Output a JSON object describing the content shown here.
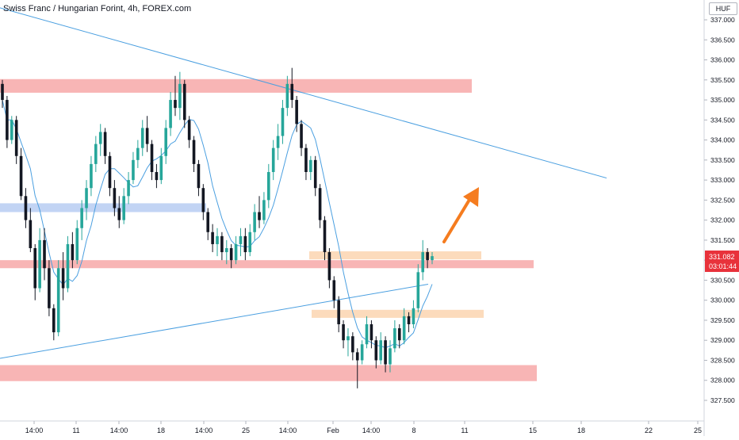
{
  "chart_data": {
    "type": "candlestick",
    "title": "Swiss Franc / Hungarian Forint, 4h, FOREX.com",
    "currency": "HUF",
    "ylim": [
      327.2,
      337.25
    ],
    "y_ticks": [
      "337.000",
      "336.500",
      "336.000",
      "335.500",
      "335.000",
      "334.500",
      "334.000",
      "333.500",
      "333.000",
      "332.500",
      "332.000",
      "331.500",
      "331.000",
      "330.500",
      "330.000",
      "329.500",
      "329.000",
      "328.500",
      "328.000",
      "327.500"
    ],
    "x_ticks": [
      "14:00",
      "11",
      "14:00",
      "18",
      "14:00",
      "25",
      "14:00",
      "Feb",
      "14:00",
      "8",
      "11",
      "15",
      "18",
      "22",
      "25"
    ],
    "last_price": "331.082",
    "countdown": "03:01:44",
    "colors": {
      "up": "#26a69a",
      "down": "#131722",
      "resistance_zone": "#f7a8a8",
      "support_zone_blue": "#b7cdf2",
      "orange_zone": "#fcd5b0",
      "trendline": "#4a9fe0",
      "moving_average": "#4a9fe0",
      "arrow": "#f57c1f",
      "price_label": "#e8323b"
    },
    "zones": [
      {
        "kind": "resistance",
        "from": 335.18,
        "to": 335.52
      },
      {
        "kind": "support-blue",
        "from": 332.2,
        "to": 332.42
      },
      {
        "kind": "resistance",
        "from": 330.8,
        "to": 331.0
      },
      {
        "kind": "orange",
        "from": 331.02,
        "to": 331.22
      },
      {
        "kind": "orange",
        "from": 329.56,
        "to": 329.76
      },
      {
        "kind": "resistance",
        "from": 327.98,
        "to": 328.38
      }
    ],
    "trendlines": [
      {
        "from": [
          0,
          337.3
        ],
        "to": [
          765,
          333.05
        ]
      },
      {
        "from": [
          0,
          328.55
        ],
        "to": [
          540,
          330.4
        ]
      }
    ],
    "candles": [
      [
        335.4,
        335.5,
        334.8,
        335.0
      ],
      [
        335.0,
        335.1,
        333.8,
        334.0
      ],
      [
        334.0,
        334.6,
        333.9,
        334.5
      ],
      [
        334.5,
        334.6,
        333.4,
        333.6
      ],
      [
        333.6,
        333.8,
        332.5,
        332.6
      ],
      [
        332.6,
        332.8,
        331.8,
        332.0
      ],
      [
        332.0,
        332.3,
        331.2,
        331.3
      ],
      [
        331.3,
        331.4,
        330.0,
        330.3
      ],
      [
        330.3,
        331.8,
        330.2,
        331.5
      ],
      [
        331.5,
        331.8,
        330.5,
        330.8
      ],
      [
        330.8,
        331.0,
        329.6,
        329.8
      ],
      [
        329.8,
        329.9,
        329.0,
        329.2
      ],
      [
        329.2,
        331.0,
        329.1,
        330.8
      ],
      [
        330.8,
        331.2,
        330.0,
        330.3
      ],
      [
        330.3,
        331.6,
        330.2,
        331.4
      ],
      [
        331.4,
        331.7,
        330.8,
        331.0
      ],
      [
        331.0,
        332.0,
        330.9,
        331.8
      ],
      [
        331.8,
        332.5,
        331.5,
        332.3
      ],
      [
        332.3,
        333.0,
        332.0,
        332.8
      ],
      [
        332.8,
        333.6,
        332.6,
        333.4
      ],
      [
        333.4,
        334.1,
        333.2,
        333.9
      ],
      [
        333.9,
        334.4,
        333.6,
        334.2
      ],
      [
        334.2,
        334.3,
        333.4,
        333.6
      ],
      [
        333.6,
        333.7,
        332.6,
        332.8
      ],
      [
        332.8,
        333.0,
        332.1,
        332.3
      ],
      [
        332.3,
        332.6,
        331.8,
        332.0
      ],
      [
        332.0,
        332.8,
        331.9,
        332.6
      ],
      [
        332.6,
        333.2,
        332.4,
        333.0
      ],
      [
        333.0,
        333.7,
        332.9,
        333.5
      ],
      [
        333.5,
        334.0,
        333.3,
        333.8
      ],
      [
        333.8,
        334.5,
        333.6,
        334.3
      ],
      [
        334.3,
        334.6,
        333.7,
        333.9
      ],
      [
        333.9,
        334.0,
        333.0,
        333.2
      ],
      [
        333.2,
        333.4,
        332.8,
        333.0
      ],
      [
        333.0,
        333.8,
        332.9,
        333.6
      ],
      [
        333.6,
        334.5,
        333.4,
        334.3
      ],
      [
        334.3,
        335.2,
        334.1,
        335.0
      ],
      [
        335.0,
        335.6,
        334.6,
        334.8
      ],
      [
        334.8,
        335.7,
        334.5,
        335.4
      ],
      [
        335.4,
        335.5,
        334.3,
        334.5
      ],
      [
        334.5,
        334.6,
        333.8,
        334.0
      ],
      [
        334.0,
        334.1,
        333.2,
        333.4
      ],
      [
        333.4,
        333.5,
        332.6,
        332.8
      ],
      [
        332.8,
        332.9,
        332.0,
        332.2
      ],
      [
        332.2,
        332.3,
        331.5,
        331.7
      ],
      [
        331.7,
        331.9,
        331.2,
        331.4
      ],
      [
        331.4,
        331.8,
        331.1,
        331.6
      ],
      [
        331.6,
        331.7,
        331.0,
        331.2
      ],
      [
        331.2,
        331.5,
        330.9,
        331.3
      ],
      [
        331.3,
        331.4,
        330.8,
        331.0
      ],
      [
        331.0,
        331.6,
        330.9,
        331.4
      ],
      [
        331.4,
        331.8,
        331.1,
        331.6
      ],
      [
        331.6,
        331.8,
        331.0,
        331.2
      ],
      [
        331.2,
        331.9,
        331.1,
        331.7
      ],
      [
        331.7,
        332.4,
        331.5,
        332.2
      ],
      [
        332.2,
        332.6,
        331.8,
        332.0
      ],
      [
        332.0,
        332.7,
        331.9,
        332.5
      ],
      [
        332.5,
        333.4,
        332.3,
        333.2
      ],
      [
        333.2,
        334.0,
        333.0,
        333.8
      ],
      [
        333.8,
        334.4,
        333.5,
        334.1
      ],
      [
        334.1,
        335.0,
        333.9,
        334.8
      ],
      [
        334.8,
        335.6,
        334.6,
        335.4
      ],
      [
        335.4,
        335.8,
        334.8,
        335.0
      ],
      [
        335.0,
        335.1,
        334.2,
        334.4
      ],
      [
        334.4,
        334.5,
        333.6,
        333.8
      ],
      [
        333.8,
        333.9,
        333.0,
        333.2
      ],
      [
        333.2,
        333.6,
        333.0,
        333.5
      ],
      [
        333.5,
        333.6,
        332.6,
        332.8
      ],
      [
        332.8,
        332.9,
        331.8,
        332.0
      ],
      [
        332.0,
        332.1,
        331.0,
        331.2
      ],
      [
        331.2,
        331.3,
        330.3,
        330.5
      ],
      [
        330.5,
        330.6,
        329.8,
        330.0
      ],
      [
        330.0,
        330.1,
        329.2,
        329.4
      ],
      [
        329.4,
        329.5,
        328.8,
        329.0
      ],
      [
        329.0,
        329.3,
        328.6,
        329.1
      ],
      [
        329.1,
        329.2,
        328.5,
        328.7
      ],
      [
        328.7,
        328.8,
        327.8,
        328.5
      ],
      [
        328.5,
        329.0,
        328.4,
        328.9
      ],
      [
        328.9,
        329.6,
        328.8,
        329.4
      ],
      [
        329.4,
        329.5,
        328.8,
        329.0
      ],
      [
        329.0,
        329.1,
        328.3,
        328.5
      ],
      [
        328.5,
        329.2,
        328.4,
        329.0
      ],
      [
        329.0,
        329.1,
        328.2,
        328.4
      ],
      [
        328.4,
        329.0,
        328.2,
        328.8
      ],
      [
        328.8,
        329.5,
        328.7,
        329.3
      ],
      [
        329.3,
        329.4,
        328.8,
        329.0
      ],
      [
        329.0,
        329.8,
        328.9,
        329.6
      ],
      [
        329.6,
        329.7,
        329.2,
        329.4
      ],
      [
        329.4,
        330.0,
        329.3,
        329.8
      ],
      [
        329.8,
        330.9,
        329.7,
        330.7
      ],
      [
        330.7,
        331.5,
        330.5,
        331.2
      ],
      [
        331.2,
        331.3,
        330.8,
        331.0
      ],
      [
        331.0,
        331.2,
        330.9,
        331.1
      ]
    ]
  }
}
